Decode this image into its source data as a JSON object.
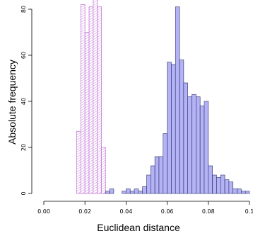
{
  "chart_data": {
    "type": "bar",
    "title": "",
    "xlabel": "Euclidean distance",
    "ylabel": "Absolute frequency",
    "xlim": [
      0.0,
      0.1
    ],
    "ylim": [
      0,
      80
    ],
    "x_ticks": [
      "0.00",
      "0.02",
      "0.04",
      "0.06",
      "0.08",
      "0.1"
    ],
    "x_tick_values": [
      0.0,
      0.02,
      0.04,
      0.06,
      0.08,
      0.1
    ],
    "y_ticks": [
      "0",
      "20",
      "40",
      "60",
      "80"
    ],
    "y_tick_values": [
      0,
      20,
      40,
      60,
      80
    ],
    "bin_width": 0.002,
    "grid": false,
    "legend": "none",
    "series": [
      {
        "style": "hatched",
        "color": "#c47ad8",
        "bin_starts": [
          0.016,
          0.018,
          0.02,
          0.022,
          0.024,
          0.026,
          0.028
        ],
        "values": [
          27,
          82,
          70,
          81,
          85,
          81,
          20
        ]
      },
      {
        "style": "solid",
        "color": "#b3b3f5",
        "bin_starts": [
          0.03,
          0.032,
          0.034,
          0.036,
          0.038,
          0.04,
          0.042,
          0.044,
          0.046,
          0.048,
          0.05,
          0.052,
          0.054,
          0.056,
          0.058,
          0.06,
          0.062,
          0.064,
          0.066,
          0.068,
          0.07,
          0.072,
          0.074,
          0.076,
          0.078,
          0.08,
          0.082,
          0.084,
          0.086,
          0.088,
          0.09,
          0.092,
          0.094,
          0.096,
          0.098
        ],
        "values": [
          1,
          2,
          0,
          0,
          1,
          2,
          1,
          2,
          1,
          3,
          8,
          12,
          16,
          16,
          26,
          57,
          56,
          81,
          58,
          48,
          42,
          43,
          42,
          38,
          40,
          12,
          8,
          7,
          8,
          6,
          5,
          2,
          2,
          1,
          1
        ]
      }
    ]
  }
}
